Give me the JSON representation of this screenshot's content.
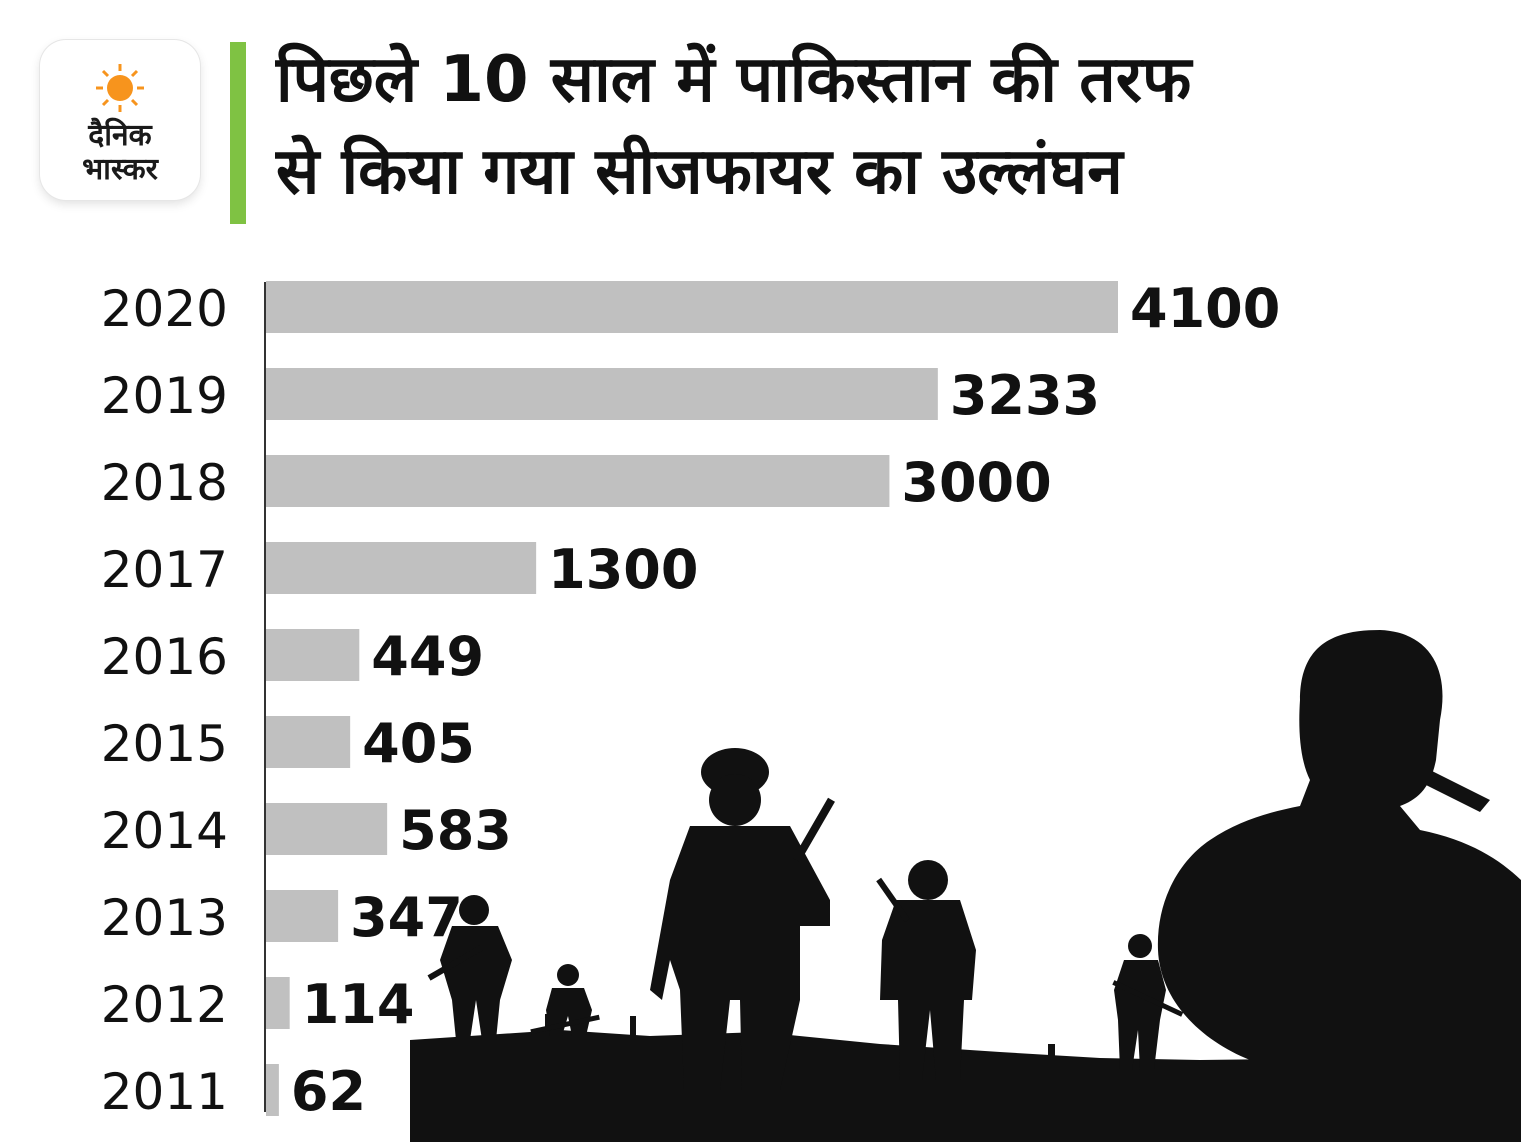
{
  "brand": {
    "logo_line1": "दैनिक",
    "logo_line2": "भास्कर"
  },
  "title_line1": "पिछले 10 साल में पाकिस्तान की तरफ",
  "title_line2": "से किया गया सीजफायर का उल्लंघन",
  "colors": {
    "bar": "#c0c0c0",
    "accent": "#7fc243",
    "text": "#111111",
    "silhouette": "#111111"
  },
  "chart_data": {
    "type": "bar",
    "orientation": "horizontal",
    "categories": [
      "2020",
      "2019",
      "2018",
      "2017",
      "2016",
      "2015",
      "2014",
      "2013",
      "2012",
      "2011"
    ],
    "values": [
      4100,
      3233,
      3000,
      1300,
      449,
      405,
      583,
      347,
      114,
      62
    ],
    "title": "पिछले 10 साल में पाकिस्तान की तरफ से किया गया सीजफायर का उल्लंघन",
    "xlabel": "",
    "ylabel": "",
    "xlim": [
      0,
      4100
    ],
    "grid": false,
    "legend": "none"
  }
}
